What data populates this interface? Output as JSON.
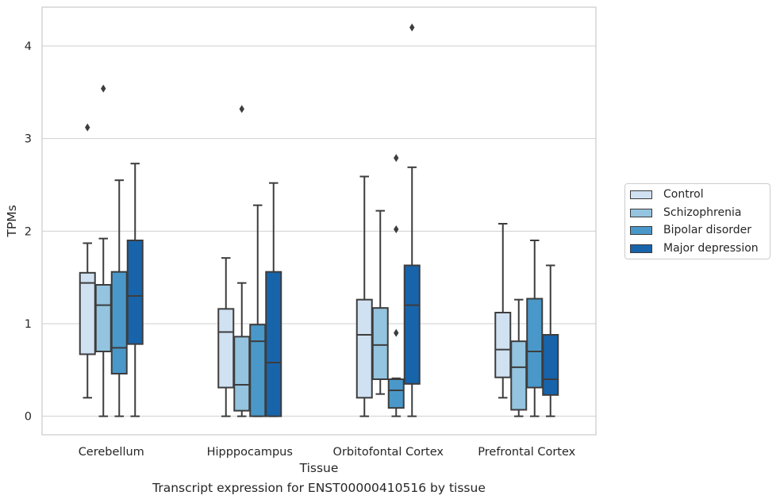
{
  "chart_data": {
    "type": "box",
    "xlabel": "Tissue",
    "ylabel": "TPMs",
    "caption": "Transcript expression for ENST00000410516 by tissue",
    "categories": [
      "Cerebellum",
      "Hipppocampus",
      "Orbitofontal Cortex",
      "Prefrontal Cortex"
    ],
    "yticks": [
      0,
      1,
      2,
      3,
      4
    ],
    "ylim": [
      -0.2,
      4.42
    ],
    "grid": "horizontal",
    "legend_position": "center-right",
    "series": [
      {
        "name": "Control",
        "color": "#d0e1f2",
        "boxes": [
          {
            "whislo": 0.2,
            "q1": 0.67,
            "med": 1.44,
            "q3": 1.55,
            "whishi": 1.87,
            "fliers": [
              3.12
            ]
          },
          {
            "whislo": 0.0,
            "q1": 0.31,
            "med": 0.91,
            "q3": 1.16,
            "whishi": 1.71,
            "fliers": []
          },
          {
            "whislo": 0.0,
            "q1": 0.2,
            "med": 0.88,
            "q3": 1.26,
            "whishi": 2.59,
            "fliers": []
          },
          {
            "whislo": 0.2,
            "q1": 0.42,
            "med": 0.72,
            "q3": 1.12,
            "whishi": 2.08,
            "fliers": []
          }
        ]
      },
      {
        "name": "Schizophrenia",
        "color": "#94c4df",
        "boxes": [
          {
            "whislo": 0.0,
            "q1": 0.7,
            "med": 1.2,
            "q3": 1.42,
            "whishi": 1.92,
            "fliers": [
              3.54
            ]
          },
          {
            "whislo": 0.0,
            "q1": 0.06,
            "med": 0.34,
            "q3": 0.86,
            "whishi": 1.44,
            "fliers": [
              3.32
            ]
          },
          {
            "whislo": 0.24,
            "q1": 0.4,
            "med": 0.77,
            "q3": 1.17,
            "whishi": 2.22,
            "fliers": []
          },
          {
            "whislo": 0.0,
            "q1": 0.07,
            "med": 0.53,
            "q3": 0.81,
            "whishi": 1.26,
            "fliers": []
          }
        ]
      },
      {
        "name": "Bipolar disorder",
        "color": "#4a98c9",
        "boxes": [
          {
            "whislo": 0.0,
            "q1": 0.46,
            "med": 0.74,
            "q3": 1.56,
            "whishi": 2.55,
            "fliers": []
          },
          {
            "whislo": 0.0,
            "q1": 0.0,
            "med": 0.81,
            "q3": 0.99,
            "whishi": 2.28,
            "fliers": []
          },
          {
            "whislo": 0.0,
            "q1": 0.09,
            "med": 0.28,
            "q3": 0.4,
            "whishi": 0.41,
            "fliers": [
              0.9,
              2.02,
              2.79
            ]
          },
          {
            "whislo": 0.0,
            "q1": 0.31,
            "med": 0.7,
            "q3": 1.27,
            "whishi": 1.9,
            "fliers": []
          }
        ]
      },
      {
        "name": "Major depression",
        "color": "#1764ab",
        "boxes": [
          {
            "whislo": 0.0,
            "q1": 0.78,
            "med": 1.3,
            "q3": 1.9,
            "whishi": 2.73,
            "fliers": []
          },
          {
            "whislo": 0.0,
            "q1": 0.0,
            "med": 0.58,
            "q3": 1.56,
            "whishi": 2.52,
            "fliers": []
          },
          {
            "whislo": 0.0,
            "q1": 0.35,
            "med": 1.2,
            "q3": 1.63,
            "whishi": 2.69,
            "fliers": [
              4.2
            ]
          },
          {
            "whislo": 0.0,
            "q1": 0.23,
            "med": 0.4,
            "q3": 0.88,
            "whishi": 1.63,
            "fliers": []
          }
        ]
      }
    ]
  }
}
